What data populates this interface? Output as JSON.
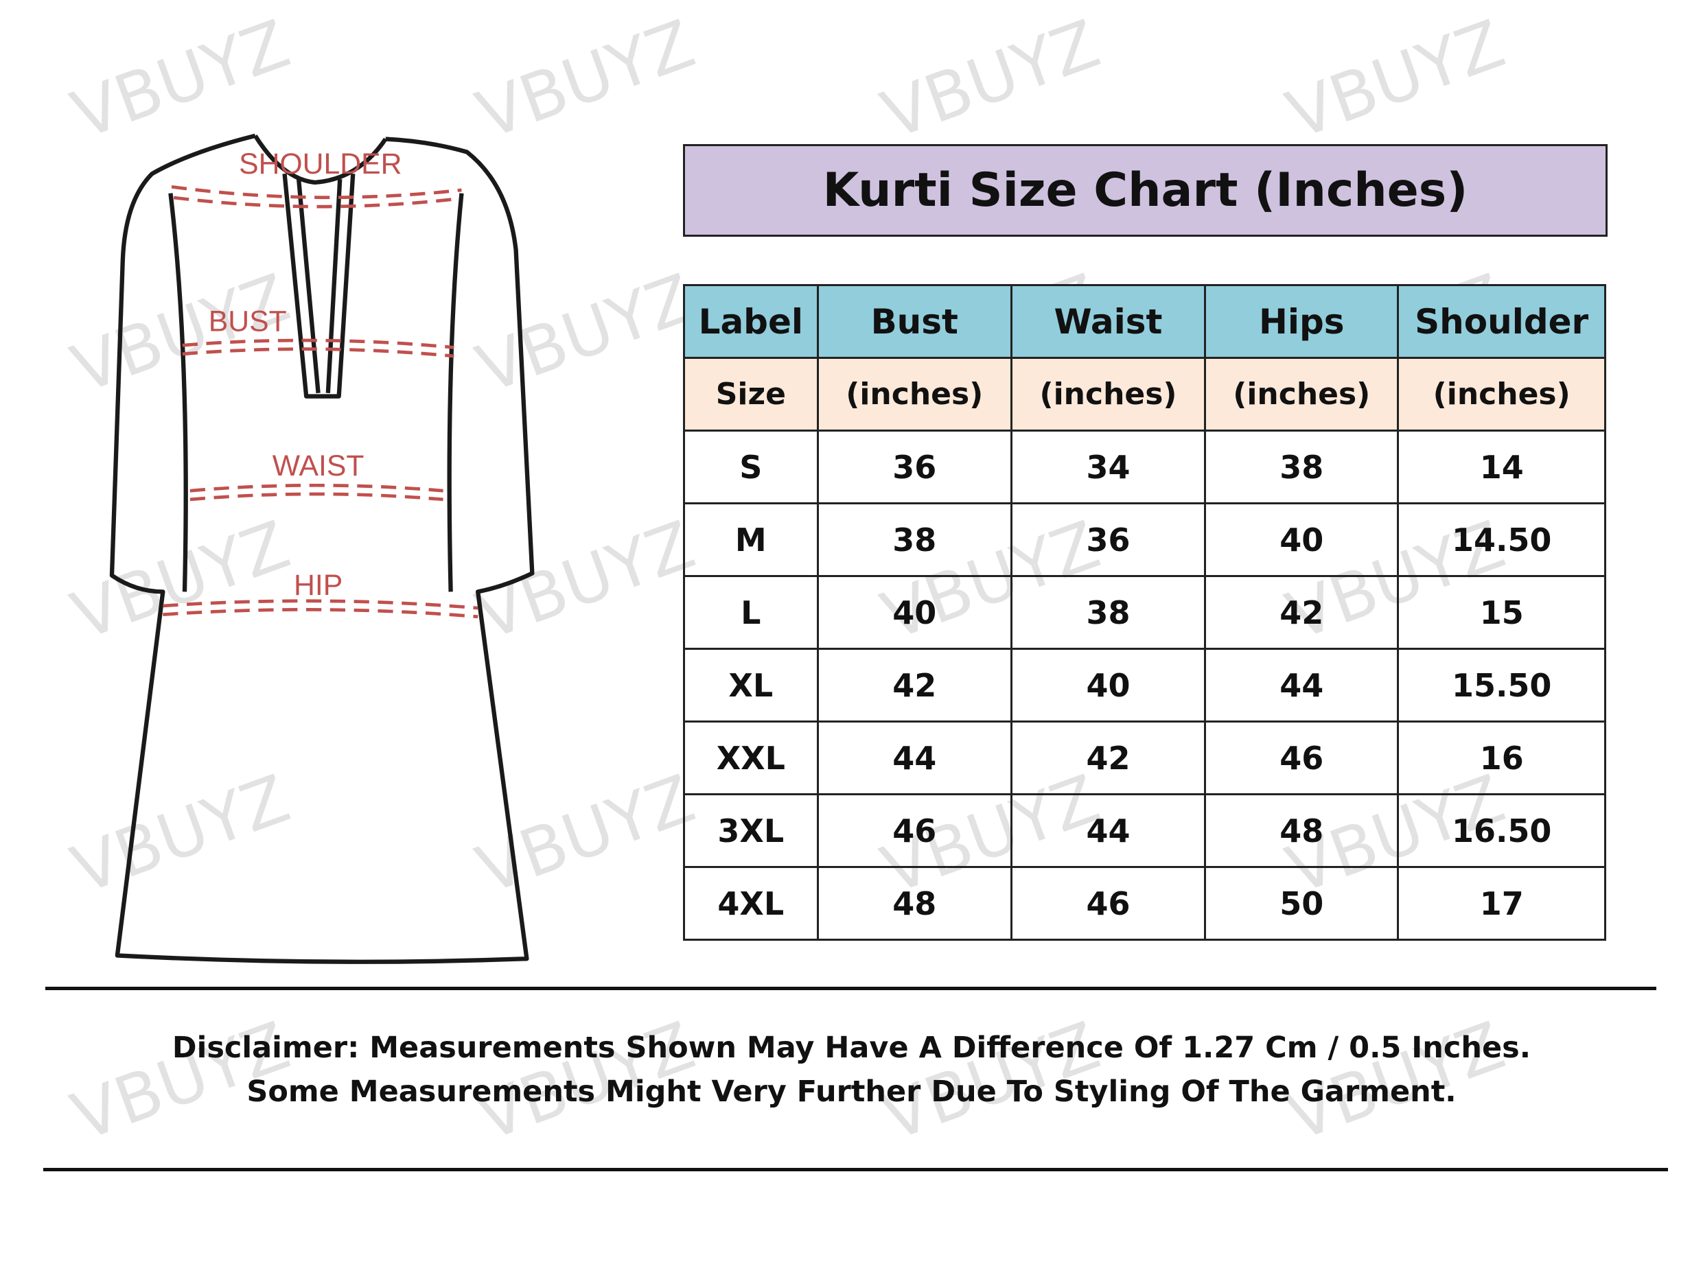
{
  "watermark": "VBUYZ",
  "diagram_labels": {
    "shoulder": "SHOULDER",
    "bust": "BUST",
    "waist": "WAIST",
    "hip": "HIP"
  },
  "title": "Kurti Size Chart (Inches)",
  "colors": {
    "title_bg": "#cfc2df",
    "header_bg": "#92cddc",
    "subheader_bg": "#fde9d9",
    "measure_lines": "#c0504d"
  },
  "table": {
    "headers": [
      "Label",
      "Bust",
      "Waist",
      "Hips",
      "Shoulder"
    ],
    "subheaders": [
      "Size",
      "(inches)",
      "(inches)",
      "(inches)",
      "(inches)"
    ],
    "rows": [
      [
        "S",
        "36",
        "34",
        "38",
        "14"
      ],
      [
        "M",
        "38",
        "36",
        "40",
        "14.50"
      ],
      [
        "L",
        "40",
        "38",
        "42",
        "15"
      ],
      [
        "XL",
        "42",
        "40",
        "44",
        "15.50"
      ],
      [
        "XXL",
        "44",
        "42",
        "46",
        "16"
      ],
      [
        "3XL",
        "46",
        "44",
        "48",
        "16.50"
      ],
      [
        "4XL",
        "48",
        "46",
        "50",
        "17"
      ]
    ]
  },
  "disclaimer": {
    "line1": "Disclaimer: Measurements Shown May Have A Difference Of 1.27 Cm / 0.5 Inches.",
    "line2": "Some Measurements Might Very Further Due To Styling Of The Garment."
  }
}
